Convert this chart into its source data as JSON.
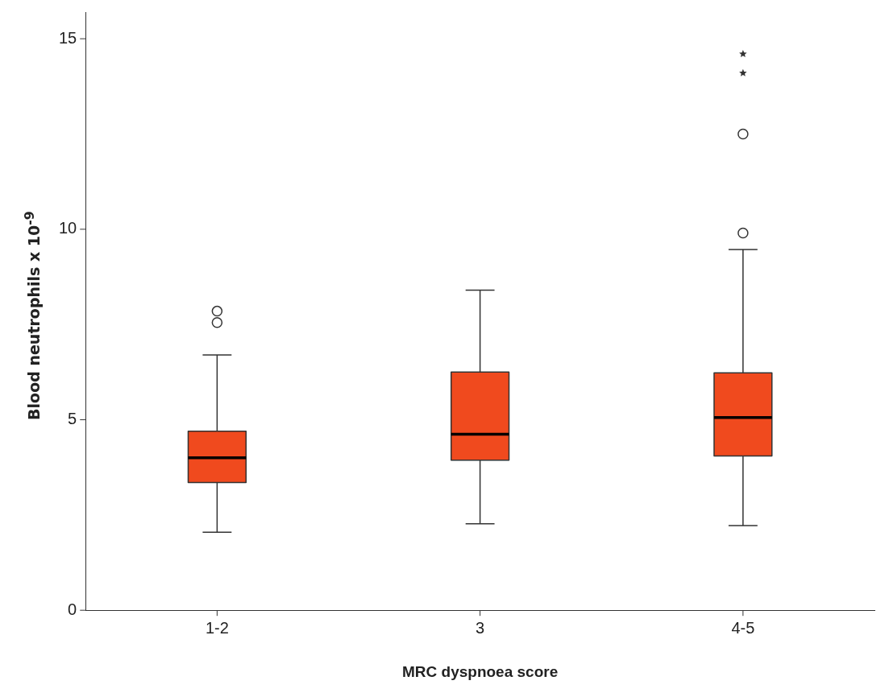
{
  "chart_data": {
    "type": "box",
    "xlabel": "MRC dyspnoea score",
    "ylabel": "Blood neutrophils x 10$^{-9}$",
    "categories": [
      "1-2",
      "3",
      "4-5"
    ],
    "color": "#f04a1e",
    "boxes": [
      {
        "low": 2.05,
        "q1": 3.35,
        "median": 4.0,
        "q3": 4.7,
        "high": 6.7,
        "outliers": [
          7.55,
          7.85
        ]
      },
      {
        "low": 2.27,
        "q1": 3.94,
        "median": 4.62,
        "q3": 6.25,
        "high": 8.4
      },
      {
        "low": 2.22,
        "q1": 4.05,
        "median": 5.06,
        "q3": 6.23,
        "high": 9.47,
        "outliers": [
          9.9,
          12.5,
          14.1,
          14.6
        ]
      }
    ],
    "ylim": [
      0,
      15.7
    ],
    "yticks": [
      0,
      5,
      10,
      15
    ],
    "grid": false
  }
}
